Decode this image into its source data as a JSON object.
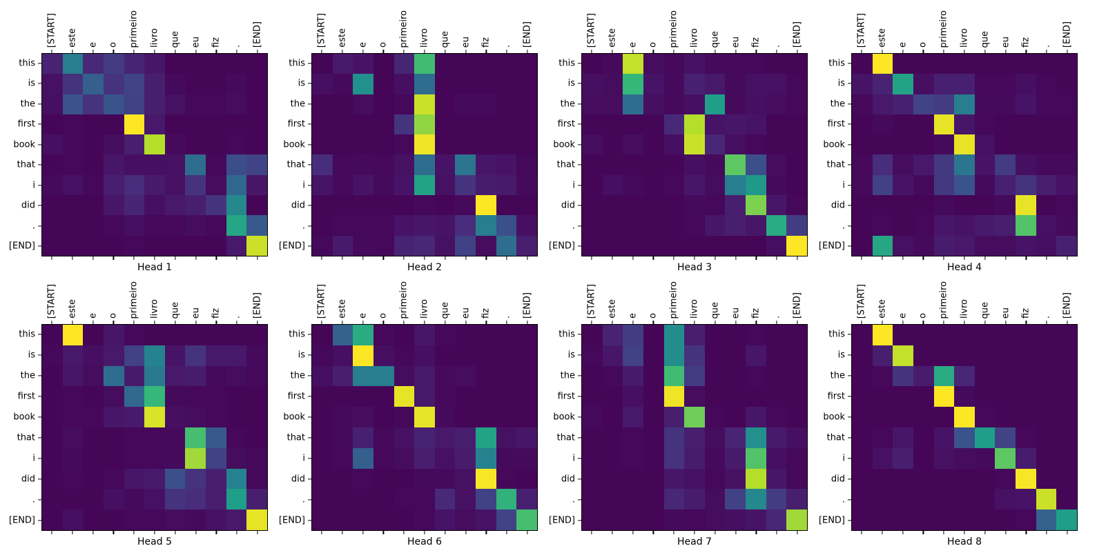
{
  "chart_data": {
    "type": "heatmap",
    "title": "",
    "colormap": "viridis",
    "colormap_stops": [
      [
        0.0,
        "#440154"
      ],
      [
        0.1,
        "#48186a"
      ],
      [
        0.2,
        "#472d7b"
      ],
      [
        0.3,
        "#3e4a89"
      ],
      [
        0.4,
        "#31688e"
      ],
      [
        0.5,
        "#26828e"
      ],
      [
        0.6,
        "#1f9e89"
      ],
      [
        0.7,
        "#35b779"
      ],
      [
        0.8,
        "#6ece58"
      ],
      [
        0.9,
        "#b5de2b"
      ],
      [
        1.0,
        "#fde725"
      ]
    ],
    "value_range": [
      0,
      1
    ],
    "grid": "off",
    "x_axis_position": "top",
    "x_label_rotation": 90,
    "x_labels": [
      "[START]",
      "este",
      "e",
      "o",
      "primeiro",
      "livro",
      "que",
      "eu",
      "fiz",
      ".",
      "[END]"
    ],
    "y_labels": [
      "this",
      "is",
      "the",
      "first",
      "book",
      "that",
      "i",
      "did",
      ".",
      "[END]"
    ],
    "heads": [
      {
        "title": "Head 1",
        "values": [
          [
            0.15,
            0.48,
            0.18,
            0.25,
            0.16,
            0.09,
            0.02,
            0.02,
            0.02,
            0.02,
            0.02
          ],
          [
            0.07,
            0.22,
            0.37,
            0.22,
            0.28,
            0.13,
            0.04,
            0.02,
            0.02,
            0.04,
            0.02
          ],
          [
            0.06,
            0.33,
            0.22,
            0.33,
            0.27,
            0.13,
            0.07,
            0.03,
            0.03,
            0.05,
            0.02
          ],
          [
            0.02,
            0.03,
            0.02,
            0.02,
            1.0,
            0.1,
            0.02,
            0.02,
            0.02,
            0.02,
            0.02
          ],
          [
            0.06,
            0.03,
            0.02,
            0.05,
            0.13,
            0.9,
            0.04,
            0.02,
            0.02,
            0.03,
            0.02
          ],
          [
            0.02,
            0.03,
            0.02,
            0.09,
            0.06,
            0.06,
            0.07,
            0.42,
            0.03,
            0.31,
            0.28
          ],
          [
            0.04,
            0.07,
            0.03,
            0.13,
            0.2,
            0.11,
            0.07,
            0.22,
            0.05,
            0.4,
            0.09
          ],
          [
            0.02,
            0.02,
            0.02,
            0.09,
            0.16,
            0.06,
            0.1,
            0.13,
            0.22,
            0.52,
            0.02
          ],
          [
            0.02,
            0.02,
            0.02,
            0.03,
            0.06,
            0.03,
            0.03,
            0.05,
            0.03,
            0.63,
            0.35
          ],
          [
            0.02,
            0.02,
            0.02,
            0.02,
            0.03,
            0.02,
            0.02,
            0.02,
            0.02,
            0.1,
            0.93
          ]
        ]
      },
      {
        "title": "Head 2",
        "values": [
          [
            0.02,
            0.1,
            0.08,
            0.02,
            0.16,
            0.72,
            0.02,
            0.02,
            0.02,
            0.02,
            0.02
          ],
          [
            0.06,
            0.04,
            0.55,
            0.02,
            0.06,
            0.42,
            0.02,
            0.02,
            0.02,
            0.02,
            0.02
          ],
          [
            0.02,
            0.02,
            0.05,
            0.02,
            0.03,
            0.93,
            0.02,
            0.04,
            0.04,
            0.02,
            0.02
          ],
          [
            0.02,
            0.02,
            0.02,
            0.02,
            0.22,
            0.85,
            0.02,
            0.02,
            0.02,
            0.02,
            0.02
          ],
          [
            0.02,
            0.02,
            0.02,
            0.02,
            0.03,
            0.98,
            0.02,
            0.02,
            0.02,
            0.02,
            0.02
          ],
          [
            0.2,
            0.03,
            0.04,
            0.03,
            0.07,
            0.42,
            0.08,
            0.45,
            0.09,
            0.08,
            0.03
          ],
          [
            0.08,
            0.03,
            0.08,
            0.04,
            0.08,
            0.62,
            0.07,
            0.22,
            0.12,
            0.11,
            0.04
          ],
          [
            0.02,
            0.02,
            0.02,
            0.02,
            0.02,
            0.03,
            0.02,
            0.04,
            1.0,
            0.02,
            0.02
          ],
          [
            0.02,
            0.03,
            0.03,
            0.03,
            0.08,
            0.09,
            0.08,
            0.2,
            0.48,
            0.32,
            0.06
          ],
          [
            0.03,
            0.11,
            0.04,
            0.03,
            0.15,
            0.17,
            0.07,
            0.27,
            0.05,
            0.42,
            0.13
          ]
        ]
      },
      {
        "title": "Head 3",
        "values": [
          [
            0.02,
            0.04,
            0.92,
            0.05,
            0.03,
            0.07,
            0.04,
            0.03,
            0.03,
            0.02,
            0.02
          ],
          [
            0.06,
            0.05,
            0.7,
            0.08,
            0.04,
            0.14,
            0.1,
            0.04,
            0.07,
            0.07,
            0.03
          ],
          [
            0.05,
            0.05,
            0.42,
            0.06,
            0.04,
            0.06,
            0.6,
            0.04,
            0.06,
            0.05,
            0.03
          ],
          [
            0.02,
            0.02,
            0.02,
            0.02,
            0.18,
            0.9,
            0.08,
            0.09,
            0.08,
            0.02,
            0.02
          ],
          [
            0.05,
            0.02,
            0.05,
            0.02,
            0.06,
            0.93,
            0.17,
            0.06,
            0.03,
            0.02,
            0.02
          ],
          [
            0.02,
            0.02,
            0.02,
            0.02,
            0.02,
            0.06,
            0.04,
            0.77,
            0.32,
            0.05,
            0.02
          ],
          [
            0.02,
            0.06,
            0.04,
            0.02,
            0.03,
            0.09,
            0.05,
            0.48,
            0.58,
            0.04,
            0.02
          ],
          [
            0.02,
            0.02,
            0.02,
            0.02,
            0.02,
            0.04,
            0.03,
            0.13,
            0.82,
            0.09,
            0.03
          ],
          [
            0.02,
            0.02,
            0.02,
            0.02,
            0.02,
            0.03,
            0.09,
            0.13,
            0.09,
            0.65,
            0.25
          ],
          [
            0.02,
            0.02,
            0.02,
            0.02,
            0.02,
            0.02,
            0.02,
            0.02,
            0.02,
            0.06,
            1.0
          ]
        ]
      },
      {
        "title": "Head 4",
        "values": [
          [
            0.02,
            1.0,
            0.02,
            0.02,
            0.02,
            0.02,
            0.02,
            0.02,
            0.02,
            0.02,
            0.02
          ],
          [
            0.08,
            0.15,
            0.62,
            0.06,
            0.14,
            0.14,
            0.03,
            0.03,
            0.06,
            0.03,
            0.02
          ],
          [
            0.03,
            0.1,
            0.14,
            0.28,
            0.25,
            0.48,
            0.04,
            0.04,
            0.08,
            0.03,
            0.03
          ],
          [
            0.02,
            0.04,
            0.02,
            0.02,
            0.97,
            0.09,
            0.03,
            0.02,
            0.02,
            0.02,
            0.02
          ],
          [
            0.02,
            0.02,
            0.02,
            0.02,
            0.04,
            0.97,
            0.07,
            0.02,
            0.02,
            0.02,
            0.02
          ],
          [
            0.03,
            0.2,
            0.05,
            0.1,
            0.24,
            0.45,
            0.08,
            0.25,
            0.06,
            0.04,
            0.04
          ],
          [
            0.03,
            0.27,
            0.08,
            0.04,
            0.24,
            0.33,
            0.04,
            0.14,
            0.22,
            0.13,
            0.08
          ],
          [
            0.02,
            0.02,
            0.02,
            0.02,
            0.04,
            0.02,
            0.02,
            0.04,
            0.97,
            0.02,
            0.03
          ],
          [
            0.02,
            0.03,
            0.02,
            0.03,
            0.09,
            0.08,
            0.11,
            0.13,
            0.75,
            0.07,
            0.04
          ],
          [
            0.02,
            0.63,
            0.07,
            0.04,
            0.12,
            0.1,
            0.05,
            0.05,
            0.08,
            0.06,
            0.14
          ]
        ]
      },
      {
        "title": "Head 5",
        "values": [
          [
            0.02,
            1.0,
            0.02,
            0.09,
            0.03,
            0.02,
            0.02,
            0.02,
            0.02,
            0.02,
            0.02
          ],
          [
            0.03,
            0.1,
            0.06,
            0.1,
            0.27,
            0.5,
            0.08,
            0.22,
            0.1,
            0.1,
            0.04
          ],
          [
            0.02,
            0.09,
            0.05,
            0.42,
            0.11,
            0.47,
            0.1,
            0.12,
            0.04,
            0.05,
            0.03
          ],
          [
            0.02,
            0.03,
            0.02,
            0.05,
            0.4,
            0.7,
            0.04,
            0.03,
            0.03,
            0.02,
            0.02
          ],
          [
            0.02,
            0.03,
            0.03,
            0.09,
            0.11,
            0.95,
            0.06,
            0.05,
            0.03,
            0.02,
            0.02
          ],
          [
            0.02,
            0.05,
            0.02,
            0.02,
            0.03,
            0.03,
            0.04,
            0.73,
            0.35,
            0.03,
            0.02
          ],
          [
            0.02,
            0.04,
            0.02,
            0.02,
            0.03,
            0.03,
            0.04,
            0.87,
            0.27,
            0.05,
            0.03
          ],
          [
            0.02,
            0.03,
            0.02,
            0.03,
            0.09,
            0.1,
            0.32,
            0.22,
            0.13,
            0.5,
            0.03
          ],
          [
            0.02,
            0.02,
            0.02,
            0.06,
            0.04,
            0.07,
            0.22,
            0.2,
            0.13,
            0.6,
            0.13
          ],
          [
            0.02,
            0.06,
            0.02,
            0.02,
            0.03,
            0.03,
            0.05,
            0.04,
            0.07,
            0.1,
            0.97
          ]
        ]
      },
      {
        "title": "Head 6",
        "values": [
          [
            0.02,
            0.38,
            0.65,
            0.03,
            0.02,
            0.09,
            0.03,
            0.02,
            0.02,
            0.02,
            0.02
          ],
          [
            0.03,
            0.06,
            1.0,
            0.06,
            0.03,
            0.06,
            0.02,
            0.02,
            0.02,
            0.02,
            0.02
          ],
          [
            0.06,
            0.13,
            0.48,
            0.48,
            0.05,
            0.1,
            0.04,
            0.05,
            0.02,
            0.02,
            0.02
          ],
          [
            0.02,
            0.02,
            0.02,
            0.02,
            0.97,
            0.1,
            0.03,
            0.02,
            0.02,
            0.02,
            0.02
          ],
          [
            0.02,
            0.04,
            0.05,
            0.02,
            0.03,
            0.97,
            0.04,
            0.02,
            0.02,
            0.02,
            0.02
          ],
          [
            0.02,
            0.04,
            0.14,
            0.03,
            0.07,
            0.15,
            0.1,
            0.13,
            0.62,
            0.07,
            0.09
          ],
          [
            0.02,
            0.03,
            0.37,
            0.03,
            0.05,
            0.13,
            0.07,
            0.12,
            0.5,
            0.04,
            0.04
          ],
          [
            0.02,
            0.02,
            0.03,
            0.02,
            0.02,
            0.04,
            0.04,
            0.07,
            0.99,
            0.03,
            0.02
          ],
          [
            0.02,
            0.02,
            0.02,
            0.02,
            0.03,
            0.03,
            0.18,
            0.07,
            0.27,
            0.68,
            0.14
          ],
          [
            0.02,
            0.02,
            0.02,
            0.02,
            0.02,
            0.03,
            0.08,
            0.05,
            0.08,
            0.28,
            0.73
          ]
        ]
      },
      {
        "title": "Head 7",
        "values": [
          [
            0.02,
            0.15,
            0.25,
            0.02,
            0.54,
            0.13,
            0.02,
            0.02,
            0.03,
            0.02,
            0.02
          ],
          [
            0.03,
            0.09,
            0.27,
            0.02,
            0.54,
            0.22,
            0.02,
            0.02,
            0.09,
            0.02,
            0.02
          ],
          [
            0.02,
            0.03,
            0.11,
            0.02,
            0.72,
            0.25,
            0.02,
            0.02,
            0.03,
            0.02,
            0.02
          ],
          [
            0.02,
            0.02,
            0.06,
            0.02,
            0.98,
            0.05,
            0.02,
            0.02,
            0.02,
            0.02,
            0.02
          ],
          [
            0.04,
            0.02,
            0.1,
            0.02,
            0.13,
            0.8,
            0.03,
            0.02,
            0.09,
            0.03,
            0.02
          ],
          [
            0.02,
            0.02,
            0.03,
            0.02,
            0.22,
            0.13,
            0.05,
            0.16,
            0.55,
            0.11,
            0.06
          ],
          [
            0.02,
            0.02,
            0.03,
            0.02,
            0.22,
            0.12,
            0.04,
            0.11,
            0.75,
            0.06,
            0.03
          ],
          [
            0.02,
            0.02,
            0.02,
            0.02,
            0.09,
            0.07,
            0.03,
            0.07,
            0.9,
            0.09,
            0.03
          ],
          [
            0.02,
            0.02,
            0.02,
            0.02,
            0.17,
            0.12,
            0.05,
            0.27,
            0.52,
            0.25,
            0.13
          ],
          [
            0.02,
            0.02,
            0.02,
            0.02,
            0.04,
            0.03,
            0.05,
            0.06,
            0.08,
            0.17,
            0.87
          ]
        ]
      },
      {
        "title": "Head 8",
        "values": [
          [
            0.02,
            1.0,
            0.02,
            0.02,
            0.02,
            0.02,
            0.02,
            0.02,
            0.02,
            0.02,
            0.02
          ],
          [
            0.02,
            0.13,
            0.92,
            0.02,
            0.02,
            0.02,
            0.02,
            0.02,
            0.02,
            0.02,
            0.02
          ],
          [
            0.02,
            0.03,
            0.22,
            0.12,
            0.65,
            0.17,
            0.02,
            0.02,
            0.02,
            0.02,
            0.02
          ],
          [
            0.02,
            0.02,
            0.02,
            0.02,
            1.0,
            0.04,
            0.02,
            0.02,
            0.02,
            0.02,
            0.02
          ],
          [
            0.02,
            0.02,
            0.02,
            0.02,
            0.02,
            1.0,
            0.03,
            0.02,
            0.02,
            0.02,
            0.02
          ],
          [
            0.02,
            0.03,
            0.09,
            0.02,
            0.08,
            0.33,
            0.6,
            0.28,
            0.03,
            0.02,
            0.02
          ],
          [
            0.02,
            0.07,
            0.13,
            0.02,
            0.07,
            0.05,
            0.04,
            0.77,
            0.12,
            0.02,
            0.02
          ],
          [
            0.02,
            0.02,
            0.02,
            0.02,
            0.02,
            0.02,
            0.02,
            0.03,
            0.99,
            0.02,
            0.02
          ],
          [
            0.02,
            0.02,
            0.02,
            0.02,
            0.02,
            0.02,
            0.02,
            0.07,
            0.08,
            0.93,
            0.02
          ],
          [
            0.02,
            0.02,
            0.02,
            0.02,
            0.02,
            0.02,
            0.02,
            0.02,
            0.03,
            0.38,
            0.6
          ]
        ]
      }
    ]
  }
}
